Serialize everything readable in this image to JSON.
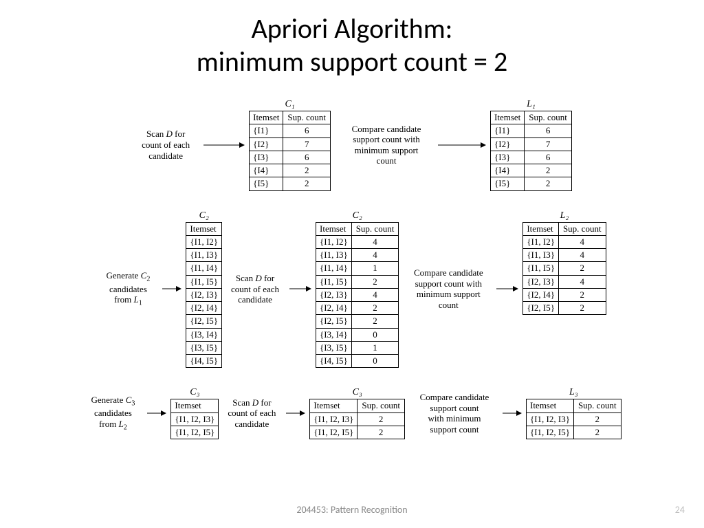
{
  "title_line1": "Apriori Algorithm:",
  "title_line2": "minimum support count = 2",
  "footer_course": "204453: Pattern Recognition",
  "footer_page": "24",
  "labels": {
    "scan_d": "Scan D for count of each candidate",
    "compare": "Compare candidate support count with minimum support count",
    "compare_short": "Compare candidate support count with minimum support count",
    "gen_c2": "Generate C₂ candidates from L₁",
    "gen_c3": "Generate C₃ candidates from L₂"
  },
  "headers": {
    "itemset": "Itemset",
    "sup": "Sup. count"
  },
  "titles": {
    "C1": "C₁",
    "L1": "L₁",
    "C2": "C₂",
    "L2": "L₂",
    "C3": "C₃",
    "L3": "L₃"
  },
  "C1": [
    {
      "set": "{I1}",
      "sup": "6"
    },
    {
      "set": "{I2}",
      "sup": "7"
    },
    {
      "set": "{I3}",
      "sup": "6"
    },
    {
      "set": "{I4}",
      "sup": "2"
    },
    {
      "set": "{I5}",
      "sup": "2"
    }
  ],
  "L1": [
    {
      "set": "{I1}",
      "sup": "6"
    },
    {
      "set": "{I2}",
      "sup": "7"
    },
    {
      "set": "{I3}",
      "sup": "6"
    },
    {
      "set": "{I4}",
      "sup": "2"
    },
    {
      "set": "{I5}",
      "sup": "2"
    }
  ],
  "C2_candidates": [
    "{I1, I2}",
    "{I1, I3}",
    "{I1, I4}",
    "{I1, I5}",
    "{I2, I3}",
    "{I2, I4}",
    "{I2, I5}",
    "{I3, I4}",
    "{I3, I5}",
    "{I4, I5}"
  ],
  "C2": [
    {
      "set": "{I1, I2}",
      "sup": "4"
    },
    {
      "set": "{I1, I3}",
      "sup": "4"
    },
    {
      "set": "{I1, I4}",
      "sup": "1"
    },
    {
      "set": "{I1, I5}",
      "sup": "2"
    },
    {
      "set": "{I2, I3}",
      "sup": "4"
    },
    {
      "set": "{I2, I4}",
      "sup": "2"
    },
    {
      "set": "{I2, I5}",
      "sup": "2"
    },
    {
      "set": "{I3, I4}",
      "sup": "0"
    },
    {
      "set": "{I3, I5}",
      "sup": "1"
    },
    {
      "set": "{I4, I5}",
      "sup": "0"
    }
  ],
  "L2": [
    {
      "set": "{I1, I2}",
      "sup": "4"
    },
    {
      "set": "{I1, I3}",
      "sup": "4"
    },
    {
      "set": "{I1, I5}",
      "sup": "2"
    },
    {
      "set": "{I2, I3}",
      "sup": "4"
    },
    {
      "set": "{I2, I4}",
      "sup": "2"
    },
    {
      "set": "{I2, I5}",
      "sup": "2"
    }
  ],
  "C3_candidates": [
    "{I1, I2, I3}",
    "{I1, I2, I5}"
  ],
  "C3": [
    {
      "set": "{I1, I2, I3}",
      "sup": "2"
    },
    {
      "set": "{I1, I2, I5}",
      "sup": "2"
    }
  ],
  "L3": [
    {
      "set": "{I1, I2, I3}",
      "sup": "2"
    },
    {
      "set": "{I1, I2, I5}",
      "sup": "2"
    }
  ],
  "style": {
    "background": "#ffffff",
    "text_color": "#000000",
    "footer_color": "#888888",
    "page_num_color": "#bfbfbf",
    "title_fontsize": 40,
    "body_fontsize": 13,
    "arrow_length": 60
  }
}
